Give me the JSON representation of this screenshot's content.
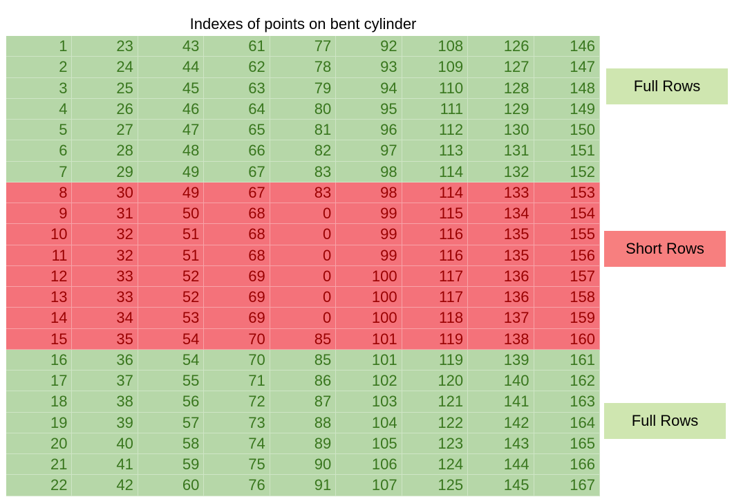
{
  "title": "Indexes of points on bent cylinder",
  "labels": {
    "top": "Full Rows",
    "middle": "Short Rows",
    "bottom": "Full Rows"
  },
  "rows": [
    {
      "type": "full",
      "cells": [
        "1",
        "23",
        "43",
        "61",
        "77",
        "92",
        "108",
        "126",
        "146"
      ]
    },
    {
      "type": "full",
      "cells": [
        "2",
        "24",
        "44",
        "62",
        "78",
        "93",
        "109",
        "127",
        "147"
      ]
    },
    {
      "type": "full",
      "cells": [
        "3",
        "25",
        "45",
        "63",
        "79",
        "94",
        "110",
        "128",
        "148"
      ]
    },
    {
      "type": "full",
      "cells": [
        "4",
        "26",
        "46",
        "64",
        "80",
        "95",
        "111",
        "129",
        "149"
      ]
    },
    {
      "type": "full",
      "cells": [
        "5",
        "27",
        "47",
        "65",
        "81",
        "96",
        "112",
        "130",
        "150"
      ]
    },
    {
      "type": "full",
      "cells": [
        "6",
        "28",
        "48",
        "66",
        "82",
        "97",
        "113",
        "131",
        "151"
      ]
    },
    {
      "type": "full",
      "cells": [
        "7",
        "29",
        "49",
        "67",
        "83",
        "98",
        "114",
        "132",
        "152"
      ]
    },
    {
      "type": "short",
      "cells": [
        "8",
        "30",
        "49",
        "67",
        "83",
        "98",
        "114",
        "133",
        "153"
      ]
    },
    {
      "type": "short",
      "cells": [
        "9",
        "31",
        "50",
        "68",
        "0",
        "99",
        "115",
        "134",
        "154"
      ]
    },
    {
      "type": "short",
      "cells": [
        "10",
        "32",
        "51",
        "68",
        "0",
        "99",
        "116",
        "135",
        "155"
      ]
    },
    {
      "type": "short",
      "cells": [
        "11",
        "32",
        "51",
        "68",
        "0",
        "99",
        "116",
        "135",
        "156"
      ]
    },
    {
      "type": "short",
      "cells": [
        "12",
        "33",
        "52",
        "69",
        "0",
        "100",
        "117",
        "136",
        "157"
      ]
    },
    {
      "type": "short",
      "cells": [
        "13",
        "33",
        "52",
        "69",
        "0",
        "100",
        "117",
        "136",
        "158"
      ]
    },
    {
      "type": "short",
      "cells": [
        "14",
        "34",
        "53",
        "69",
        "0",
        "100",
        "118",
        "137",
        "159"
      ]
    },
    {
      "type": "short",
      "cells": [
        "15",
        "35",
        "54",
        "70",
        "85",
        "101",
        "119",
        "138",
        "160"
      ]
    },
    {
      "type": "full",
      "cells": [
        "16",
        "36",
        "54",
        "70",
        "85",
        "101",
        "119",
        "139",
        "161"
      ]
    },
    {
      "type": "full",
      "cells": [
        "17",
        "37",
        "55",
        "71",
        "86",
        "102",
        "120",
        "140",
        "162"
      ]
    },
    {
      "type": "full",
      "cells": [
        "18",
        "38",
        "56",
        "72",
        "87",
        "103",
        "121",
        "141",
        "163"
      ]
    },
    {
      "type": "full",
      "cells": [
        "19",
        "39",
        "57",
        "73",
        "88",
        "104",
        "122",
        "142",
        "164"
      ]
    },
    {
      "type": "full",
      "cells": [
        "20",
        "40",
        "58",
        "74",
        "89",
        "105",
        "123",
        "143",
        "165"
      ]
    },
    {
      "type": "full",
      "cells": [
        "21",
        "41",
        "59",
        "75",
        "90",
        "106",
        "124",
        "144",
        "166"
      ]
    },
    {
      "type": "full",
      "cells": [
        "22",
        "42",
        "60",
        "76",
        "91",
        "107",
        "125",
        "145",
        "167"
      ]
    }
  ],
  "colors": {
    "full_bg": "#b6d7a8",
    "full_text": "#38761d",
    "short_bg": "#f4727a",
    "short_text": "#990000"
  }
}
